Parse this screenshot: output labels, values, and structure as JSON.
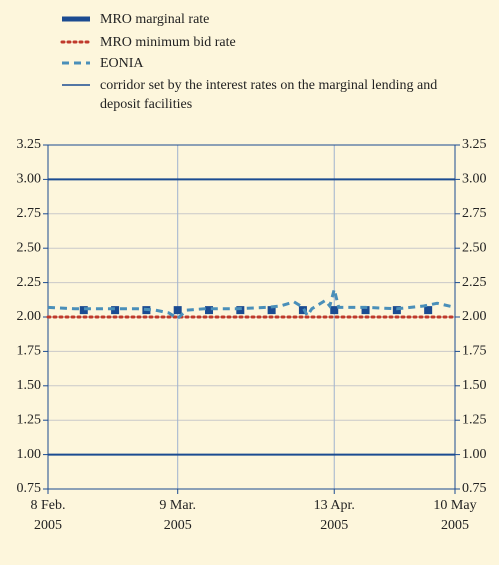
{
  "chart_data": {
    "type": "line",
    "xlim": [
      "2005-02-08",
      "2005-05-10"
    ],
    "xticks": [
      {
        "value": "2005-02-08",
        "label": [
          "8 Feb.",
          "2005"
        ]
      },
      {
        "value": "2005-03-09",
        "label": [
          "9 Mar.",
          "2005"
        ]
      },
      {
        "value": "2005-04-13",
        "label": [
          "13 Apr.",
          "2005"
        ]
      },
      {
        "value": "2005-05-10",
        "label": [
          "10 May",
          "2005"
        ]
      }
    ],
    "ylim": [
      0.75,
      3.25
    ],
    "yticks": [
      0.75,
      {
        "value": 1.0,
        "label": "1.00"
      },
      1.25,
      {
        "value": 1.5,
        "label": "1.50"
      },
      1.75,
      {
        "value": 2.0,
        "label": "2.00"
      },
      2.25,
      {
        "value": 2.5,
        "label": "2.50"
      },
      2.75,
      {
        "value": 3.0,
        "label": "3.00"
      },
      3.25
    ],
    "grid": true,
    "series": [
      {
        "name": "MRO marginal rate",
        "color": "#1b4b91",
        "style": "markers",
        "x": [
          "2005-02-16",
          "2005-02-23",
          "2005-03-02",
          "2005-03-09",
          "2005-03-16",
          "2005-03-23",
          "2005-03-30",
          "2005-04-06",
          "2005-04-13",
          "2005-04-20",
          "2005-04-27",
          "2005-05-04"
        ],
        "values": [
          2.05,
          2.05,
          2.05,
          2.05,
          2.05,
          2.05,
          2.05,
          2.05,
          2.05,
          2.05,
          2.05,
          2.05
        ]
      },
      {
        "name": "MRO minimum bid rate",
        "color": "#c0392b",
        "style": "dotted",
        "x": [
          "2005-02-08",
          "2005-05-10"
        ],
        "values": [
          2.0,
          2.0
        ]
      },
      {
        "name": "EONIA",
        "color": "#4a8fb9",
        "style": "dashed",
        "x": [
          "2005-02-08",
          "2005-02-14",
          "2005-02-21",
          "2005-02-28",
          "2005-03-04",
          "2005-03-07",
          "2005-03-09",
          "2005-03-11",
          "2005-03-15",
          "2005-03-22",
          "2005-03-29",
          "2005-04-01",
          "2005-04-04",
          "2005-04-06",
          "2005-04-07",
          "2005-04-08",
          "2005-04-11",
          "2005-04-12",
          "2005-04-13",
          "2005-04-14",
          "2005-04-20",
          "2005-04-27",
          "2005-05-03",
          "2005-05-06",
          "2005-05-10"
        ],
        "values": [
          2.07,
          2.06,
          2.06,
          2.06,
          2.05,
          2.03,
          1.99,
          2.05,
          2.06,
          2.06,
          2.07,
          2.08,
          2.11,
          2.07,
          2.01,
          2.06,
          2.12,
          2.08,
          2.2,
          2.07,
          2.07,
          2.06,
          2.08,
          2.1,
          2.07
        ]
      },
      {
        "name": "corridor set by the interest rates on the marginal lending and deposit facilities",
        "color": "#1b4b91",
        "style": "solid",
        "x": [
          "2005-02-08",
          "2005-05-10"
        ],
        "upper": [
          3.0,
          3.0
        ],
        "lower": [
          1.0,
          1.0
        ]
      }
    ]
  }
}
